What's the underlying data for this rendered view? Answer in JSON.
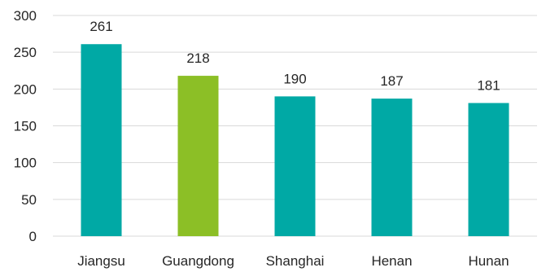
{
  "chart_data": {
    "type": "bar",
    "title": "",
    "xlabel": "",
    "ylabel": "",
    "categories": [
      "Jiangsu",
      "Guangdong",
      "Shanghai",
      "Henan",
      "Hunan"
    ],
    "values": [
      261,
      218,
      190,
      187,
      181
    ],
    "data_labels": [
      "261",
      "218",
      "190",
      "187",
      "181"
    ],
    "bar_colors": [
      "#00a9a5",
      "#8cbf26",
      "#00a9a5",
      "#00a9a5",
      "#00a9a5"
    ],
    "ylim": [
      0,
      300
    ],
    "y_ticks": [
      0,
      50,
      100,
      150,
      200,
      250,
      300
    ],
    "y_tick_labels": [
      "0",
      "50",
      "100",
      "150",
      "200",
      "250",
      "300"
    ],
    "grid": true,
    "legend": "none"
  }
}
